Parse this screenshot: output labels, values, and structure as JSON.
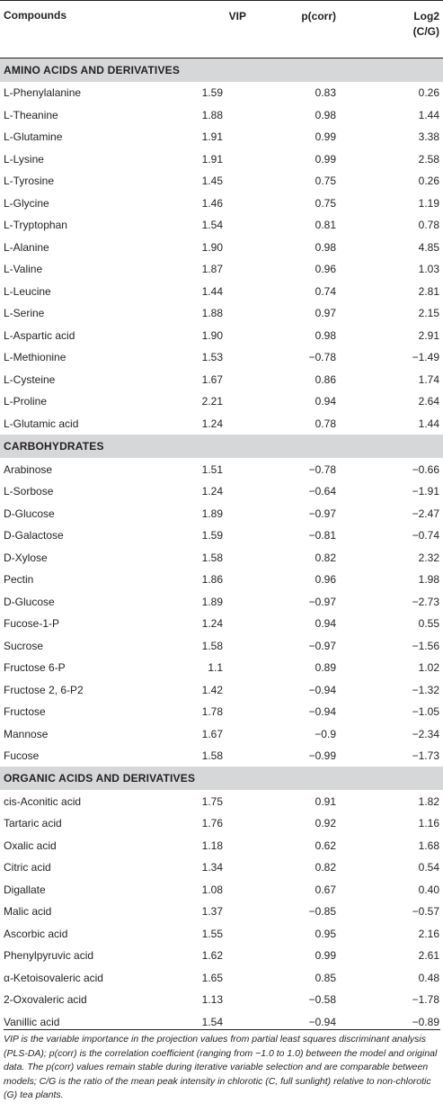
{
  "table": {
    "headers": {
      "compounds": "Compounds",
      "vip": "VIP",
      "pcorr": "p(corr)",
      "log2_line1": "Log2",
      "log2_line2": "(C/G)"
    },
    "sections": [
      {
        "title": "AMINO ACIDS AND DERIVATIVES",
        "rows": [
          {
            "name": "L-Phenylalanine",
            "vip": "1.59",
            "pcorr": "0.83",
            "log2": "0.26"
          },
          {
            "name": "L-Theanine",
            "vip": "1.88",
            "pcorr": "0.98",
            "log2": "1.44"
          },
          {
            "name": "L-Glutamine",
            "vip": "1.91",
            "pcorr": "0.99",
            "log2": "3.38"
          },
          {
            "name": "L-Lysine",
            "vip": "1.91",
            "pcorr": "0.99",
            "log2": "2.58"
          },
          {
            "name": "L-Tyrosine",
            "vip": "1.45",
            "pcorr": "0.75",
            "log2": "0.26"
          },
          {
            "name": "L-Glycine",
            "vip": "1.46",
            "pcorr": "0.75",
            "log2": "1.19"
          },
          {
            "name": "L-Tryptophan",
            "vip": "1.54",
            "pcorr": "0.81",
            "log2": "0.78"
          },
          {
            "name": "L-Alanine",
            "vip": "1.90",
            "pcorr": "0.98",
            "log2": "4.85"
          },
          {
            "name": "L-Valine",
            "vip": "1.87",
            "pcorr": "0.96",
            "log2": "1.03"
          },
          {
            "name": "L-Leucine",
            "vip": "1.44",
            "pcorr": "0.74",
            "log2": "2.81"
          },
          {
            "name": "L-Serine",
            "vip": "1.88",
            "pcorr": "0.97",
            "log2": "2.15"
          },
          {
            "name": "L-Aspartic acid",
            "vip": "1.90",
            "pcorr": "0.98",
            "log2": "2.91"
          },
          {
            "name": "L-Methionine",
            "vip": "1.53",
            "pcorr": "−0.78",
            "log2": "−1.49"
          },
          {
            "name": "L-Cysteine",
            "vip": "1.67",
            "pcorr": "0.86",
            "log2": "1.74"
          },
          {
            "name": "L-Proline",
            "vip": "2.21",
            "pcorr": "0.94",
            "log2": "2.64"
          },
          {
            "name": "L-Glutamic acid",
            "vip": "1.24",
            "pcorr": "0.78",
            "log2": "1.44"
          }
        ]
      },
      {
        "title": "CARBOHYDRATES",
        "rows": [
          {
            "name": "Arabinose",
            "vip": "1.51",
            "pcorr": "−0.78",
            "log2": "−0.66"
          },
          {
            "name": "L-Sorbose",
            "vip": "1.24",
            "pcorr": "−0.64",
            "log2": "−1.91"
          },
          {
            "name": "D-Glucose",
            "vip": "1.89",
            "pcorr": "−0.97",
            "log2": "−2.47"
          },
          {
            "name": "D-Galactose",
            "vip": "1.59",
            "pcorr": "−0.81",
            "log2": "−0.74"
          },
          {
            "name": "D-Xylose",
            "vip": "1.58",
            "pcorr": "0.82",
            "log2": "2.32"
          },
          {
            "name": "Pectin",
            "vip": "1.86",
            "pcorr": "0.96",
            "log2": "1.98"
          },
          {
            "name": "D-Glucose",
            "vip": "1.89",
            "pcorr": "−0.97",
            "log2": "−2.73"
          },
          {
            "name": "Fucose-1-P",
            "vip": "1.24",
            "pcorr": "0.94",
            "log2": "0.55"
          },
          {
            "name": "Sucrose",
            "vip": "1.58",
            "pcorr": "−0.97",
            "log2": "−1.56"
          },
          {
            "name": "Fructose 6-P",
            "vip": "1.1",
            "pcorr": "0.89",
            "log2": "1.02"
          },
          {
            "name": "Fructose 2, 6-P2",
            "vip": "1.42",
            "pcorr": "−0.94",
            "log2": "−1.32"
          },
          {
            "name": "Fructose",
            "vip": "1.78",
            "pcorr": "−0.94",
            "log2": "−1.05"
          },
          {
            "name": "Mannose",
            "vip": "1.67",
            "pcorr": "−0.9",
            "log2": "−2.34"
          },
          {
            "name": "Fucose",
            "vip": "1.58",
            "pcorr": "−0.99",
            "log2": "−1.73"
          }
        ]
      },
      {
        "title": "ORGANIC ACIDS AND DERIVATIVES",
        "rows": [
          {
            "name": "cis-Aconitic acid",
            "vip": "1.75",
            "pcorr": "0.91",
            "log2": "1.82"
          },
          {
            "name": "Tartaric acid",
            "vip": "1.76",
            "pcorr": "0.92",
            "log2": "1.16"
          },
          {
            "name": "Oxalic acid",
            "vip": "1.18",
            "pcorr": "0.62",
            "log2": "1.68"
          },
          {
            "name": "Citric acid",
            "vip": "1.34",
            "pcorr": "0.82",
            "log2": "0.54"
          },
          {
            "name": "Digallate",
            "vip": "1.08",
            "pcorr": "0.67",
            "log2": "0.40"
          },
          {
            "name": "Malic acid",
            "vip": "1.37",
            "pcorr": "−0.85",
            "log2": "−0.57"
          },
          {
            "name": "Ascorbic acid",
            "vip": "1.55",
            "pcorr": "0.95",
            "log2": "2.16"
          },
          {
            "name": "Phenylpyruvic acid",
            "vip": "1.62",
            "pcorr": "0.99",
            "log2": "2.61"
          },
          {
            "name": "α-Ketoisovaleric acid",
            "vip": "1.65",
            "pcorr": "0.85",
            "log2": "0.48"
          },
          {
            "name": "2-Oxovaleric acid",
            "vip": "1.13",
            "pcorr": "−0.58",
            "log2": "−1.78"
          },
          {
            "name": "Vanillic acid",
            "vip": "1.54",
            "pcorr": "−0.94",
            "log2": "−0.89"
          }
        ]
      }
    ]
  },
  "footnote": "VIP is the variable importance in the projection values from partial least squares discriminant analysis (PLS-DA); p(corr) is the correlation coefficient (ranging from −1.0 to 1.0) between the model and original data. The p(corr) values remain stable during iterative variable selection and are comparable between models; C/G is the ratio of the mean peak intensity in chlorotic (C, full sunlight) relative to non-chlorotic (G) tea plants."
}
